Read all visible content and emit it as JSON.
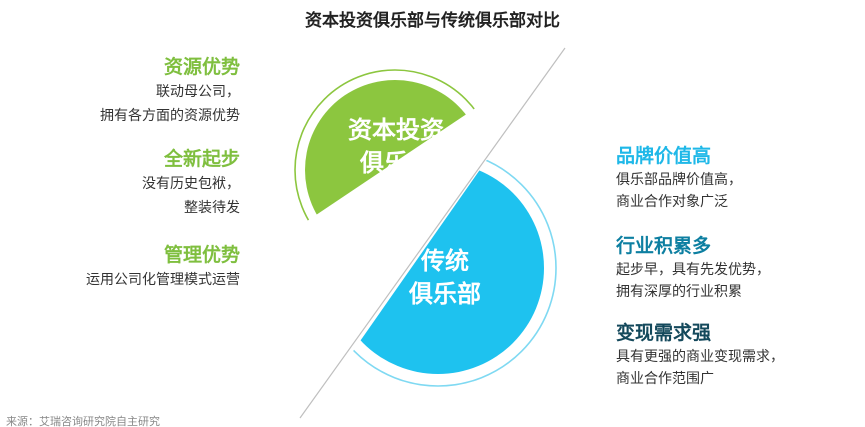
{
  "title": "资本投资俱乐部与传统俱乐部对比",
  "circles": {
    "green_label_line1": "资本投资",
    "green_label_line2": "俱乐部",
    "blue_label_line1": "传统",
    "blue_label_line2": "俱乐部"
  },
  "left_items": [
    {
      "heading": "资源优势",
      "lines": [
        "联动母公司，",
        "拥有各方面的资源优势"
      ]
    },
    {
      "heading": "全新起步",
      "lines": [
        "没有历史包袱，",
        "整装待发"
      ]
    },
    {
      "heading": "管理优势",
      "lines": [
        "运用公司化管理模式运营"
      ]
    }
  ],
  "right_items": [
    {
      "heading": "品牌价值高",
      "lines": [
        "俱乐部品牌价值高，",
        "商业合作对象广泛"
      ]
    },
    {
      "heading": "行业积累多",
      "lines": [
        "起步早，具有先发优势，",
        "拥有深厚的行业积累"
      ]
    },
    {
      "heading": "变现需求强",
      "lines": [
        "具有更强的商业变现需求，",
        "商业合作范围广"
      ]
    }
  ],
  "colors": {
    "green": "#8cc63f",
    "blue": "#1ec2ef",
    "ring_green": "#8cc63f",
    "ring_blue": "#7fd9f2",
    "divider": "#bfbfbf"
  },
  "footnote": "来源：艾瑞咨询研究院自主研究"
}
